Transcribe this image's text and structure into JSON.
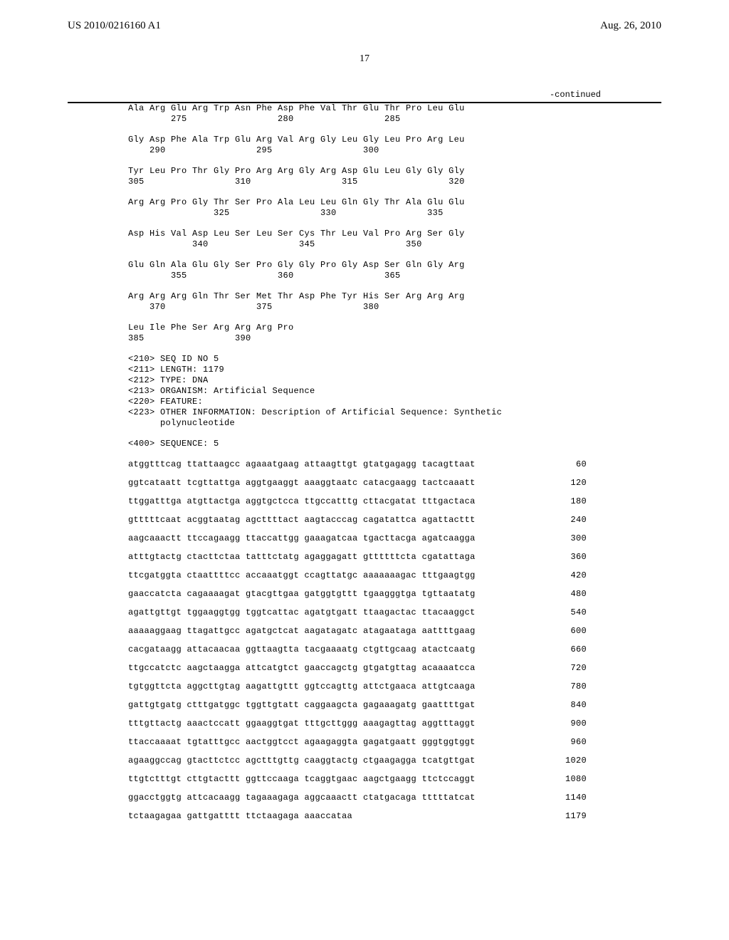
{
  "header": {
    "patent_number": "US 2010/0216160 A1",
    "date": "Aug. 26, 2010"
  },
  "page_number": "17",
  "continued": "-continued",
  "protein_rows": [
    {
      "aa": "Ala Arg Glu Arg Trp Asn Phe Asp Phe Val Thr Glu Thr Pro Leu Glu",
      "pos": "        275                 280                 285"
    },
    {
      "aa": "Gly Asp Phe Ala Trp Glu Arg Val Arg Gly Leu Gly Leu Pro Arg Leu",
      "pos": "    290                 295                 300"
    },
    {
      "aa": "Tyr Leu Pro Thr Gly Pro Arg Arg Gly Arg Asp Glu Leu Gly Gly Gly",
      "pos": "305                 310                 315                 320"
    },
    {
      "aa": "Arg Arg Pro Gly Thr Ser Pro Ala Leu Leu Gln Gly Thr Ala Glu Glu",
      "pos": "                325                 330                 335"
    },
    {
      "aa": "Asp His Val Asp Leu Ser Leu Ser Cys Thr Leu Val Pro Arg Ser Gly",
      "pos": "            340                 345                 350"
    },
    {
      "aa": "Glu Gln Ala Glu Gly Ser Pro Gly Gly Pro Gly Asp Ser Gln Gly Arg",
      "pos": "        355                 360                 365"
    },
    {
      "aa": "Arg Arg Arg Gln Thr Ser Met Thr Asp Phe Tyr His Ser Arg Arg Arg",
      "pos": "    370                 375                 380"
    },
    {
      "aa": "Leu Ile Phe Ser Arg Arg Arg Pro",
      "pos": "385                 390"
    }
  ],
  "meta": {
    "lines": [
      "<210> SEQ ID NO 5",
      "<211> LENGTH: 1179",
      "<212> TYPE: DNA",
      "<213> ORGANISM: Artificial Sequence",
      "<220> FEATURE:",
      "<223> OTHER INFORMATION: Description of Artificial Sequence: Synthetic",
      "      polynucleotide"
    ],
    "sequence_label": "<400> SEQUENCE: 5"
  },
  "nucleotide_rows": [
    {
      "seq": "atggtttcag ttattaagcc agaaatgaag attaagttgt gtatgagagg tacagttaat",
      "pos": "60"
    },
    {
      "seq": "ggtcataatt tcgttattga aggtgaaggt aaaggtaatc catacgaagg tactcaaatt",
      "pos": "120"
    },
    {
      "seq": "ttggatttga atgttactga aggtgctcca ttgccatttg cttacgatat tttgactaca",
      "pos": "180"
    },
    {
      "seq": "gtttttcaat acggtaatag agcttttact aagtacccag cagatattca agattacttt",
      "pos": "240"
    },
    {
      "seq": "aagcaaactt ttccagaagg ttaccattgg gaaagatcaa tgacttacga agatcaagga",
      "pos": "300"
    },
    {
      "seq": "atttgtactg ctacttctaa tatttctatg agaggagatt gttttttcta cgatattaga",
      "pos": "360"
    },
    {
      "seq": "ttcgatggta ctaattttcc accaaatggt ccagttatgc aaaaaaagac tttgaagtgg",
      "pos": "420"
    },
    {
      "seq": "gaaccatcta cagaaaagat gtacgttgaa gatggtgttt tgaagggtga tgttaatatg",
      "pos": "480"
    },
    {
      "seq": "agattgttgt tggaaggtgg tggtcattac agatgtgatt ttaagactac ttacaaggct",
      "pos": "540"
    },
    {
      "seq": "aaaaaggaag ttagattgcc agatgctcat aagatagatc atagaataga aattttgaag",
      "pos": "600"
    },
    {
      "seq": "cacgataagg attacaacaa ggttaagtta tacgaaaatg ctgttgcaag atactcaatg",
      "pos": "660"
    },
    {
      "seq": "ttgccatctc aagctaagga attcatgtct gaaccagctg gtgatgttag acaaaatcca",
      "pos": "720"
    },
    {
      "seq": "tgtggttcta aggcttgtag aagattgttt ggtccagttg attctgaaca attgtcaaga",
      "pos": "780"
    },
    {
      "seq": "gattgtgatg ctttgatggc tggttgtatt caggaagcta gagaaagatg gaattttgat",
      "pos": "840"
    },
    {
      "seq": "tttgttactg aaactccatt ggaaggtgat tttgcttggg aaagagttag aggtttaggt",
      "pos": "900"
    },
    {
      "seq": "ttaccaaaat tgtatttgcc aactggtcct agaagaggta gagatgaatt gggtggtggt",
      "pos": "960"
    },
    {
      "seq": "agaaggccag gtacttctcc agctttgttg caaggtactg ctgaagagga tcatgttgat",
      "pos": "1020"
    },
    {
      "seq": "ttgtctttgt cttgtacttt ggttccaaga tcaggtgaac aagctgaagg ttctccaggt",
      "pos": "1080"
    },
    {
      "seq": "ggacctggtg attcacaagg tagaaagaga aggcaaactt ctatgacaga tttttatcat",
      "pos": "1140"
    },
    {
      "seq": "tctaagagaa gattgatttt ttctaagaga aaaccataa",
      "pos": "1179"
    }
  ]
}
